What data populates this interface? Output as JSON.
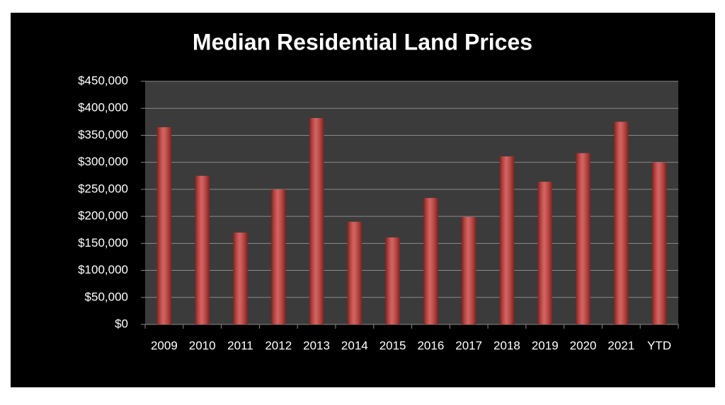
{
  "chart_data": {
    "type": "bar",
    "title": "Median Residential Land Prices",
    "categories": [
      "2009",
      "2010",
      "2011",
      "2012",
      "2013",
      "2014",
      "2015",
      "2016",
      "2017",
      "2018",
      "2019",
      "2020",
      "2021",
      "YTD"
    ],
    "values": [
      365000,
      275000,
      170000,
      250000,
      382000,
      190000,
      161000,
      234000,
      199000,
      311000,
      264000,
      317000,
      375000,
      300000
    ],
    "color": "#c8302c",
    "ylim": [
      0,
      450000
    ],
    "yticks": [
      {
        "value": 0,
        "label": "$0"
      },
      {
        "value": 50000,
        "label": "$50,000"
      },
      {
        "value": 100000,
        "label": "$100,000"
      },
      {
        "value": 150000,
        "label": "$150,000"
      },
      {
        "value": 200000,
        "label": "$200,000"
      },
      {
        "value": 250000,
        "label": "$250,000"
      },
      {
        "value": 300000,
        "label": "$300,000"
      },
      {
        "value": 350000,
        "label": "$350,000"
      },
      {
        "value": 400000,
        "label": "$400,000"
      },
      {
        "value": 450000,
        "label": "$450,000"
      }
    ],
    "grid": true
  }
}
